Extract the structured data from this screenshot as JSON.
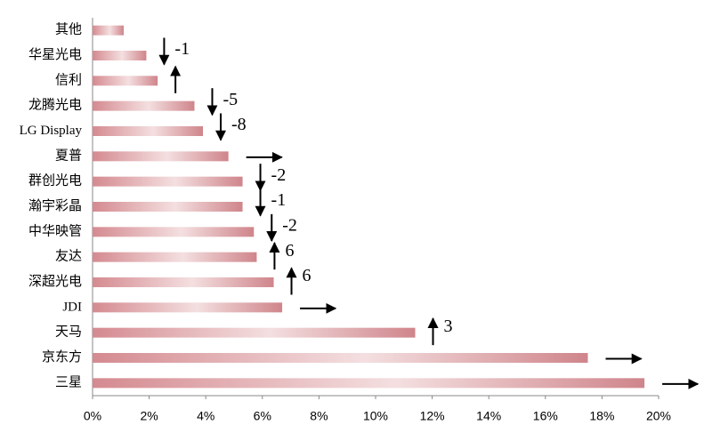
{
  "chart_data": {
    "type": "bar",
    "orientation": "horizontal",
    "categories": [
      "其他",
      "华星光电",
      "信利",
      "龙腾光电",
      "LG Display",
      "夏普",
      "群创光电",
      "瀚宇彩晶",
      "中华映管",
      "友达",
      "深超光电",
      "JDI",
      "天马",
      "京东方",
      "三星"
    ],
    "values": [
      1.1,
      1.9,
      2.3,
      3.6,
      3.9,
      4.8,
      5.3,
      5.3,
      5.7,
      5.8,
      6.4,
      6.7,
      11.4,
      17.5,
      19.5
    ],
    "trend": [
      "none",
      "down",
      "up",
      "down",
      "down",
      "right",
      "down",
      "down",
      "down",
      "up",
      "up",
      "right",
      "up",
      "right",
      "right"
    ],
    "rank_change": [
      null,
      -1,
      null,
      -5,
      -8,
      null,
      -2,
      -1,
      -2,
      6,
      6,
      null,
      3,
      null,
      null
    ],
    "color": "#d48a90",
    "xlim": [
      0,
      20
    ],
    "xticks": [
      {
        "value": 0,
        "label": "0%"
      },
      {
        "value": 2,
        "label": "2%"
      },
      {
        "value": 4,
        "label": "4%"
      },
      {
        "value": 6,
        "label": "6%"
      },
      {
        "value": 8,
        "label": "8%"
      },
      {
        "value": 10,
        "label": "10%"
      },
      {
        "value": 12,
        "label": "12%"
      },
      {
        "value": 14,
        "label": "14%"
      },
      {
        "value": 16,
        "label": "16%"
      },
      {
        "value": 18,
        "label": "18%"
      },
      {
        "value": 20,
        "label": "20%"
      }
    ]
  }
}
